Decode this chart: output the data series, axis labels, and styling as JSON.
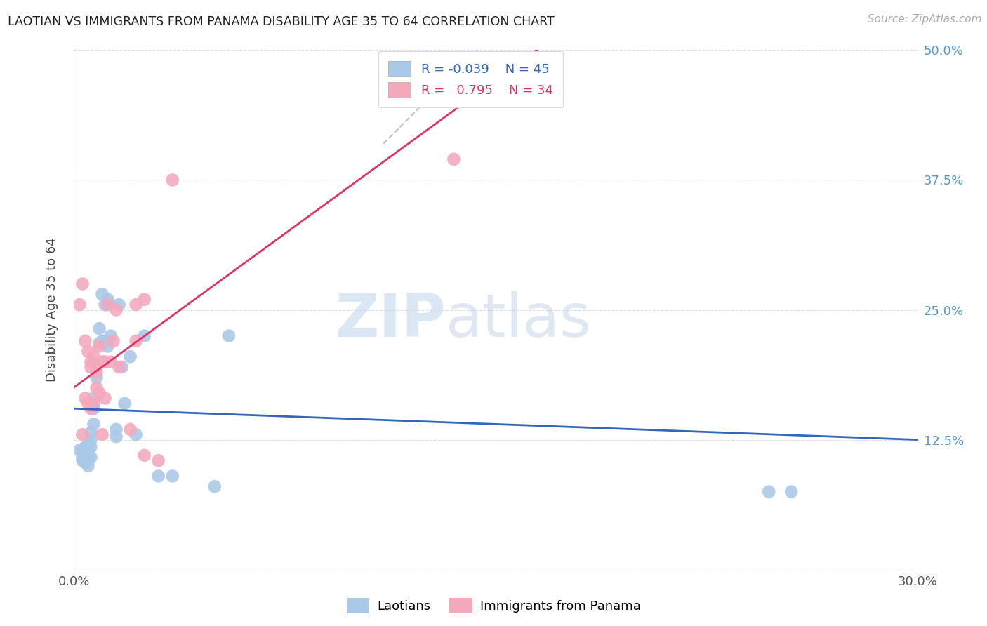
{
  "title": "LAOTIAN VS IMMIGRANTS FROM PANAMA DISABILITY AGE 35 TO 64 CORRELATION CHART",
  "source": "Source: ZipAtlas.com",
  "ylabel": "Disability Age 35 to 64",
  "xlim": [
    0.0,
    0.3
  ],
  "ylim": [
    0.0,
    0.5
  ],
  "xticks": [
    0.0,
    0.03,
    0.06,
    0.09,
    0.12,
    0.15,
    0.18,
    0.21,
    0.24,
    0.27,
    0.3
  ],
  "xtick_labels_show": [
    "0.0%",
    "",
    "",
    "",
    "",
    "",
    "",
    "",
    "",
    "",
    "30.0%"
  ],
  "yticks_right": [
    0.0,
    0.125,
    0.25,
    0.375,
    0.5
  ],
  "ytick_labels_right": [
    "",
    "12.5%",
    "25.0%",
    "37.5%",
    "50.0%"
  ],
  "blue_R": -0.039,
  "blue_N": 45,
  "pink_R": 0.795,
  "pink_N": 34,
  "watermark_left": "ZIP",
  "watermark_right": "atlas",
  "blue_scatter_color": "#aac8e8",
  "pink_scatter_color": "#f4a8bc",
  "blue_line_color": "#3366bb",
  "pink_line_color": "#dd3366",
  "grey_dash_color": "#c0c0c0",
  "laotian_x": [
    0.002,
    0.003,
    0.003,
    0.003,
    0.004,
    0.004,
    0.004,
    0.004,
    0.005,
    0.005,
    0.005,
    0.005,
    0.005,
    0.006,
    0.006,
    0.006,
    0.006,
    0.007,
    0.007,
    0.007,
    0.008,
    0.008,
    0.009,
    0.009,
    0.01,
    0.01,
    0.011,
    0.011,
    0.012,
    0.012,
    0.013,
    0.015,
    0.015,
    0.016,
    0.017,
    0.018,
    0.02,
    0.022,
    0.025,
    0.03,
    0.035,
    0.05,
    0.055,
    0.247,
    0.255
  ],
  "laotian_y": [
    0.115,
    0.112,
    0.108,
    0.105,
    0.118,
    0.113,
    0.108,
    0.103,
    0.12,
    0.115,
    0.11,
    0.105,
    0.1,
    0.132,
    0.125,
    0.118,
    0.108,
    0.165,
    0.155,
    0.14,
    0.195,
    0.185,
    0.232,
    0.218,
    0.265,
    0.22,
    0.255,
    0.22,
    0.26,
    0.215,
    0.225,
    0.135,
    0.128,
    0.255,
    0.195,
    0.16,
    0.205,
    0.13,
    0.225,
    0.09,
    0.09,
    0.08,
    0.225,
    0.075,
    0.075
  ],
  "panama_x": [
    0.002,
    0.003,
    0.003,
    0.004,
    0.004,
    0.005,
    0.005,
    0.006,
    0.006,
    0.006,
    0.007,
    0.007,
    0.008,
    0.008,
    0.009,
    0.009,
    0.01,
    0.01,
    0.011,
    0.011,
    0.012,
    0.013,
    0.014,
    0.015,
    0.016,
    0.02,
    0.022,
    0.022,
    0.025,
    0.025,
    0.03,
    0.035,
    0.128,
    0.135
  ],
  "panama_y": [
    0.255,
    0.275,
    0.13,
    0.22,
    0.165,
    0.21,
    0.16,
    0.2,
    0.195,
    0.155,
    0.205,
    0.16,
    0.19,
    0.175,
    0.215,
    0.17,
    0.2,
    0.13,
    0.2,
    0.165,
    0.255,
    0.2,
    0.22,
    0.25,
    0.195,
    0.135,
    0.255,
    0.22,
    0.26,
    0.11,
    0.105,
    0.375,
    0.49,
    0.395
  ]
}
